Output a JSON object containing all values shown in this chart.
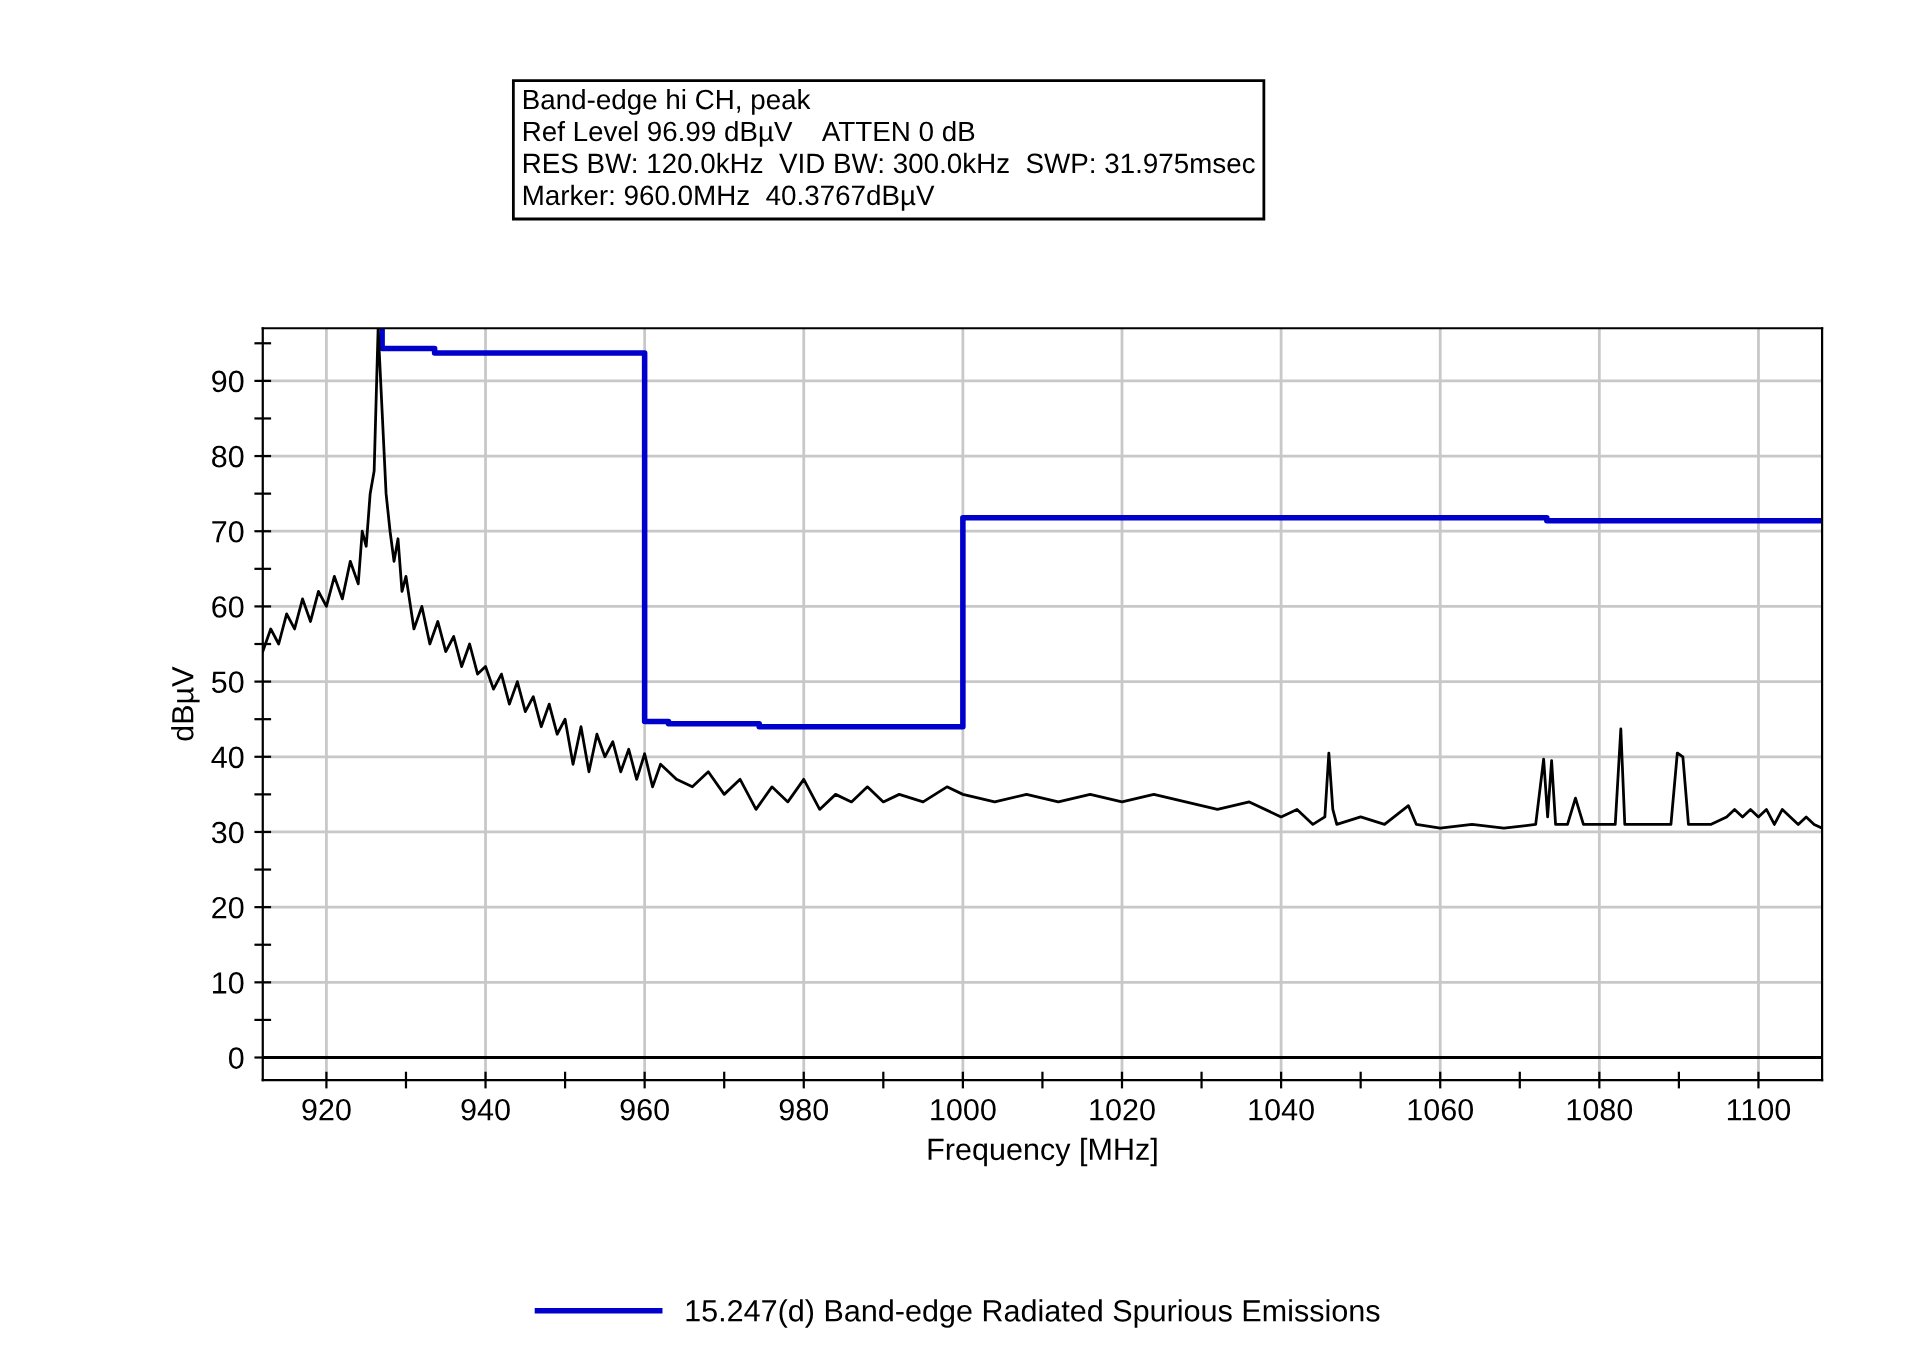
{
  "chart_data": {
    "type": "line",
    "annotations": [
      "Band-edge hi CH, peak",
      "Ref Level 96.99 dBµV    ATTEN 0 dB",
      "RES BW: 120.0kHz  VID BW: 300.0kHz  SWP: 31.975msec",
      "Marker: 960.0MHz  40.3767dBµV"
    ],
    "xlabel": "Frequency [MHz]",
    "ylabel": "dBµV",
    "xlim": [
      912,
      1108
    ],
    "xticks": [
      920,
      {
        "value": 930,
        "label": null
      },
      940,
      {
        "value": 950,
        "label": null
      },
      960,
      {
        "value": 970,
        "label": null
      },
      980,
      {
        "value": 990,
        "label": null
      },
      1000,
      {
        "value": 1010,
        "label": null
      },
      1020,
      {
        "value": 1030,
        "label": null
      },
      1040,
      {
        "value": 1050,
        "label": null
      },
      1060,
      {
        "value": 1070,
        "label": null
      },
      1080,
      {
        "value": 1090,
        "label": null
      },
      1100
    ],
    "ylim": [
      -3,
      97
    ],
    "yticks": [
      0,
      {
        "value": 5,
        "label": null
      },
      10,
      {
        "value": 15,
        "label": null
      },
      20,
      {
        "value": 25,
        "label": null
      },
      30,
      {
        "value": 35,
        "label": null
      },
      40,
      {
        "value": 45,
        "label": null
      },
      50,
      {
        "value": 55,
        "label": null
      },
      60,
      {
        "value": 65,
        "label": null
      },
      70,
      {
        "value": 75,
        "label": null
      },
      80,
      {
        "value": 85,
        "label": null
      },
      90,
      {
        "value": 95,
        "label": null
      }
    ],
    "grid": true,
    "legend": "bottom",
    "marker": "none",
    "line_style": "solid",
    "ref_lines": [
      {
        "axis": "y",
        "value": 0,
        "color": "#000000"
      }
    ],
    "series": [
      {
        "name": "15.247(d) Band-edge Radiated Spurious Emissions",
        "color": "#0000cc",
        "x": [
          927,
          927,
          933.6,
          933.6,
          960,
          960,
          963,
          963,
          974.4,
          974.4,
          1000,
          1000,
          1073.4,
          1073.4,
          1108
        ],
        "values": [
          97,
          94.3,
          94.3,
          93.7,
          93.7,
          44.7,
          44.7,
          44.4,
          44.4,
          44.0,
          44.0,
          71.8,
          71.8,
          71.4,
          71.4
        ]
      },
      {
        "color": "#000000",
        "x": [
          912,
          913,
          914,
          915,
          916,
          917,
          918,
          919,
          920,
          921,
          922,
          923,
          924,
          924.5,
          925,
          925.5,
          926,
          926.5,
          927,
          927.5,
          928,
          928.5,
          929,
          929.5,
          930,
          931,
          932,
          933,
          934,
          935,
          936,
          937,
          938,
          939,
          940,
          941,
          942,
          943,
          944,
          945,
          946,
          947,
          948,
          949,
          950,
          951,
          952,
          953,
          954,
          955,
          956,
          957,
          958,
          959,
          960,
          961,
          962,
          964,
          966,
          968,
          970,
          972,
          974,
          976,
          978,
          980,
          982,
          984,
          986,
          988,
          990,
          992,
          995,
          998,
          1000,
          1004,
          1008,
          1012,
          1016,
          1020,
          1024,
          1028,
          1032,
          1036,
          1040,
          1042,
          1044,
          1045.5,
          1046,
          1046.5,
          1047,
          1050,
          1053,
          1056,
          1057,
          1060,
          1064,
          1068,
          1072,
          1073,
          1073.5,
          1074,
          1074.5,
          1076,
          1077,
          1078,
          1080,
          1082,
          1082.7,
          1083.2,
          1083.7,
          1086,
          1089,
          1089.8,
          1090.5,
          1091.2,
          1094,
          1096,
          1097,
          1098,
          1099,
          1100,
          1101,
          1102,
          1103,
          1104,
          1105,
          1106,
          1107,
          1108
        ],
        "values": [
          54,
          57,
          55,
          59,
          57,
          61,
          58,
          62,
          60,
          64,
          61,
          66,
          63,
          70,
          68,
          75,
          78,
          97,
          86,
          75,
          70,
          66,
          69,
          62,
          64,
          57,
          60,
          55,
          58,
          54,
          56,
          52,
          55,
          51,
          52,
          49,
          51,
          47,
          50,
          46,
          48,
          44,
          47,
          43,
          45,
          39,
          44,
          38,
          43,
          40,
          42,
          38,
          41,
          37,
          40.4,
          36,
          39,
          37,
          36,
          38,
          35,
          37,
          33,
          36,
          34,
          37,
          33,
          35,
          34,
          36,
          34,
          35,
          34,
          36,
          35,
          34,
          35,
          34,
          35,
          34,
          35,
          34,
          33,
          34,
          32,
          33,
          31,
          32,
          40.5,
          33,
          31,
          32,
          31,
          33.5,
          31,
          30.5,
          31,
          30.5,
          31,
          39.7,
          32,
          39.5,
          31,
          31,
          34.5,
          31,
          31,
          31,
          43.7,
          31,
          31,
          31,
          31,
          40.5,
          40,
          31,
          31,
          32,
          33,
          32,
          33,
          32,
          33,
          31,
          33,
          32,
          31,
          32,
          31,
          30.5
        ]
      }
    ]
  }
}
